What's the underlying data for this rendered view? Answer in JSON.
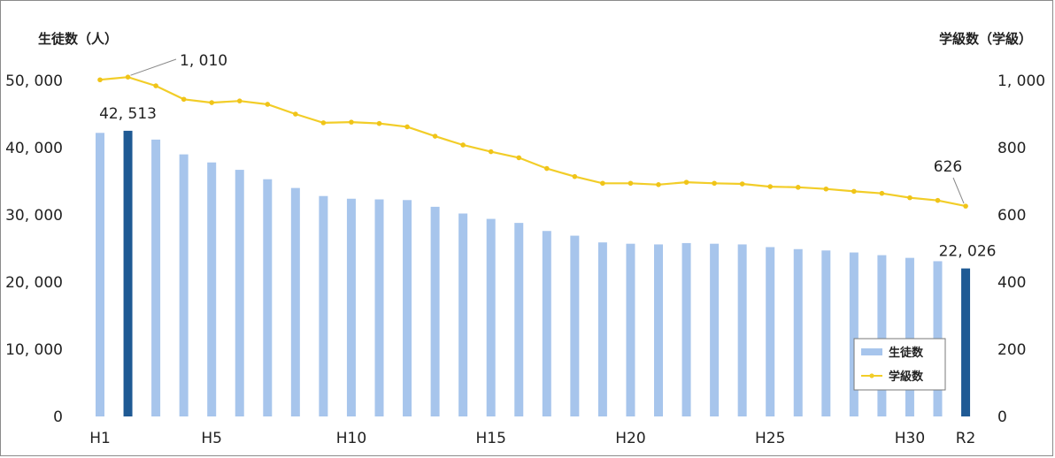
{
  "chart_data": {
    "type": "bar",
    "x": [
      "H1",
      "H2",
      "H3",
      "H4",
      "H5",
      "H6",
      "H7",
      "H8",
      "H9",
      "H10",
      "H11",
      "H12",
      "H13",
      "H14",
      "H15",
      "H16",
      "H17",
      "H18",
      "H19",
      "H20",
      "H21",
      "H22",
      "H23",
      "H24",
      "H25",
      "H26",
      "H27",
      "H28",
      "H29",
      "H30",
      "H31",
      "R2"
    ],
    "x_tick_labels": [
      {
        "index": 0,
        "label": "H1"
      },
      {
        "index": 4,
        "label": "H5"
      },
      {
        "index": 9,
        "label": "H10"
      },
      {
        "index": 14,
        "label": "H15"
      },
      {
        "index": 19,
        "label": "H20"
      },
      {
        "index": 24,
        "label": "H25"
      },
      {
        "index": 29,
        "label": "H30"
      },
      {
        "index": 31,
        "label": "R2"
      }
    ],
    "series": [
      {
        "name": "生徒数",
        "axis": "left",
        "type": "bar",
        "color": "#a7c5ec",
        "highlight_color": "#1f5a94",
        "highlight_indices": [
          1,
          31
        ],
        "values": [
          42200,
          42513,
          41200,
          39000,
          37800,
          36700,
          35300,
          34000,
          32800,
          32400,
          32300,
          32200,
          31200,
          30200,
          29400,
          28800,
          27600,
          26900,
          25900,
          25700,
          25600,
          25800,
          25700,
          25600,
          25200,
          24900,
          24700,
          24400,
          24000,
          23600,
          23100,
          22026
        ]
      },
      {
        "name": "学級数",
        "axis": "right",
        "type": "line",
        "color": "#f2cd28",
        "values": [
          1002,
          1010,
          984,
          944,
          934,
          939,
          929,
          900,
          874,
          876,
          872,
          862,
          834,
          808,
          788,
          770,
          738,
          714,
          694,
          694,
          690,
          697,
          694,
          692,
          684,
          682,
          677,
          670,
          664,
          651,
          643,
          626
        ]
      }
    ],
    "y_left": {
      "label": "生徒数（人）",
      "ylim": [
        0,
        50000
      ],
      "ticks": [
        0,
        10000,
        20000,
        30000,
        40000,
        50000
      ],
      "tick_labels": [
        "0",
        "10, 000",
        "20, 000",
        "30, 000",
        "40, 000",
        "50, 000"
      ]
    },
    "y_right": {
      "label": "学級数（学級）",
      "ylim": [
        0,
        1000
      ],
      "ticks": [
        0,
        200,
        400,
        600,
        800,
        1000
      ],
      "tick_labels": [
        "0",
        "200",
        "400",
        "600",
        "800",
        "1, 000"
      ]
    },
    "annotations": [
      {
        "series": 0,
        "index": 1,
        "text": "42, 513"
      },
      {
        "series": 0,
        "index": 31,
        "text": "22, 026"
      },
      {
        "series": 1,
        "index": 1,
        "text": "1, 010"
      },
      {
        "series": 1,
        "index": 31,
        "text": "626"
      }
    ],
    "legend": {
      "position": "bottom-right",
      "entries": [
        "生徒数",
        "学級数"
      ]
    },
    "grid": false
  }
}
